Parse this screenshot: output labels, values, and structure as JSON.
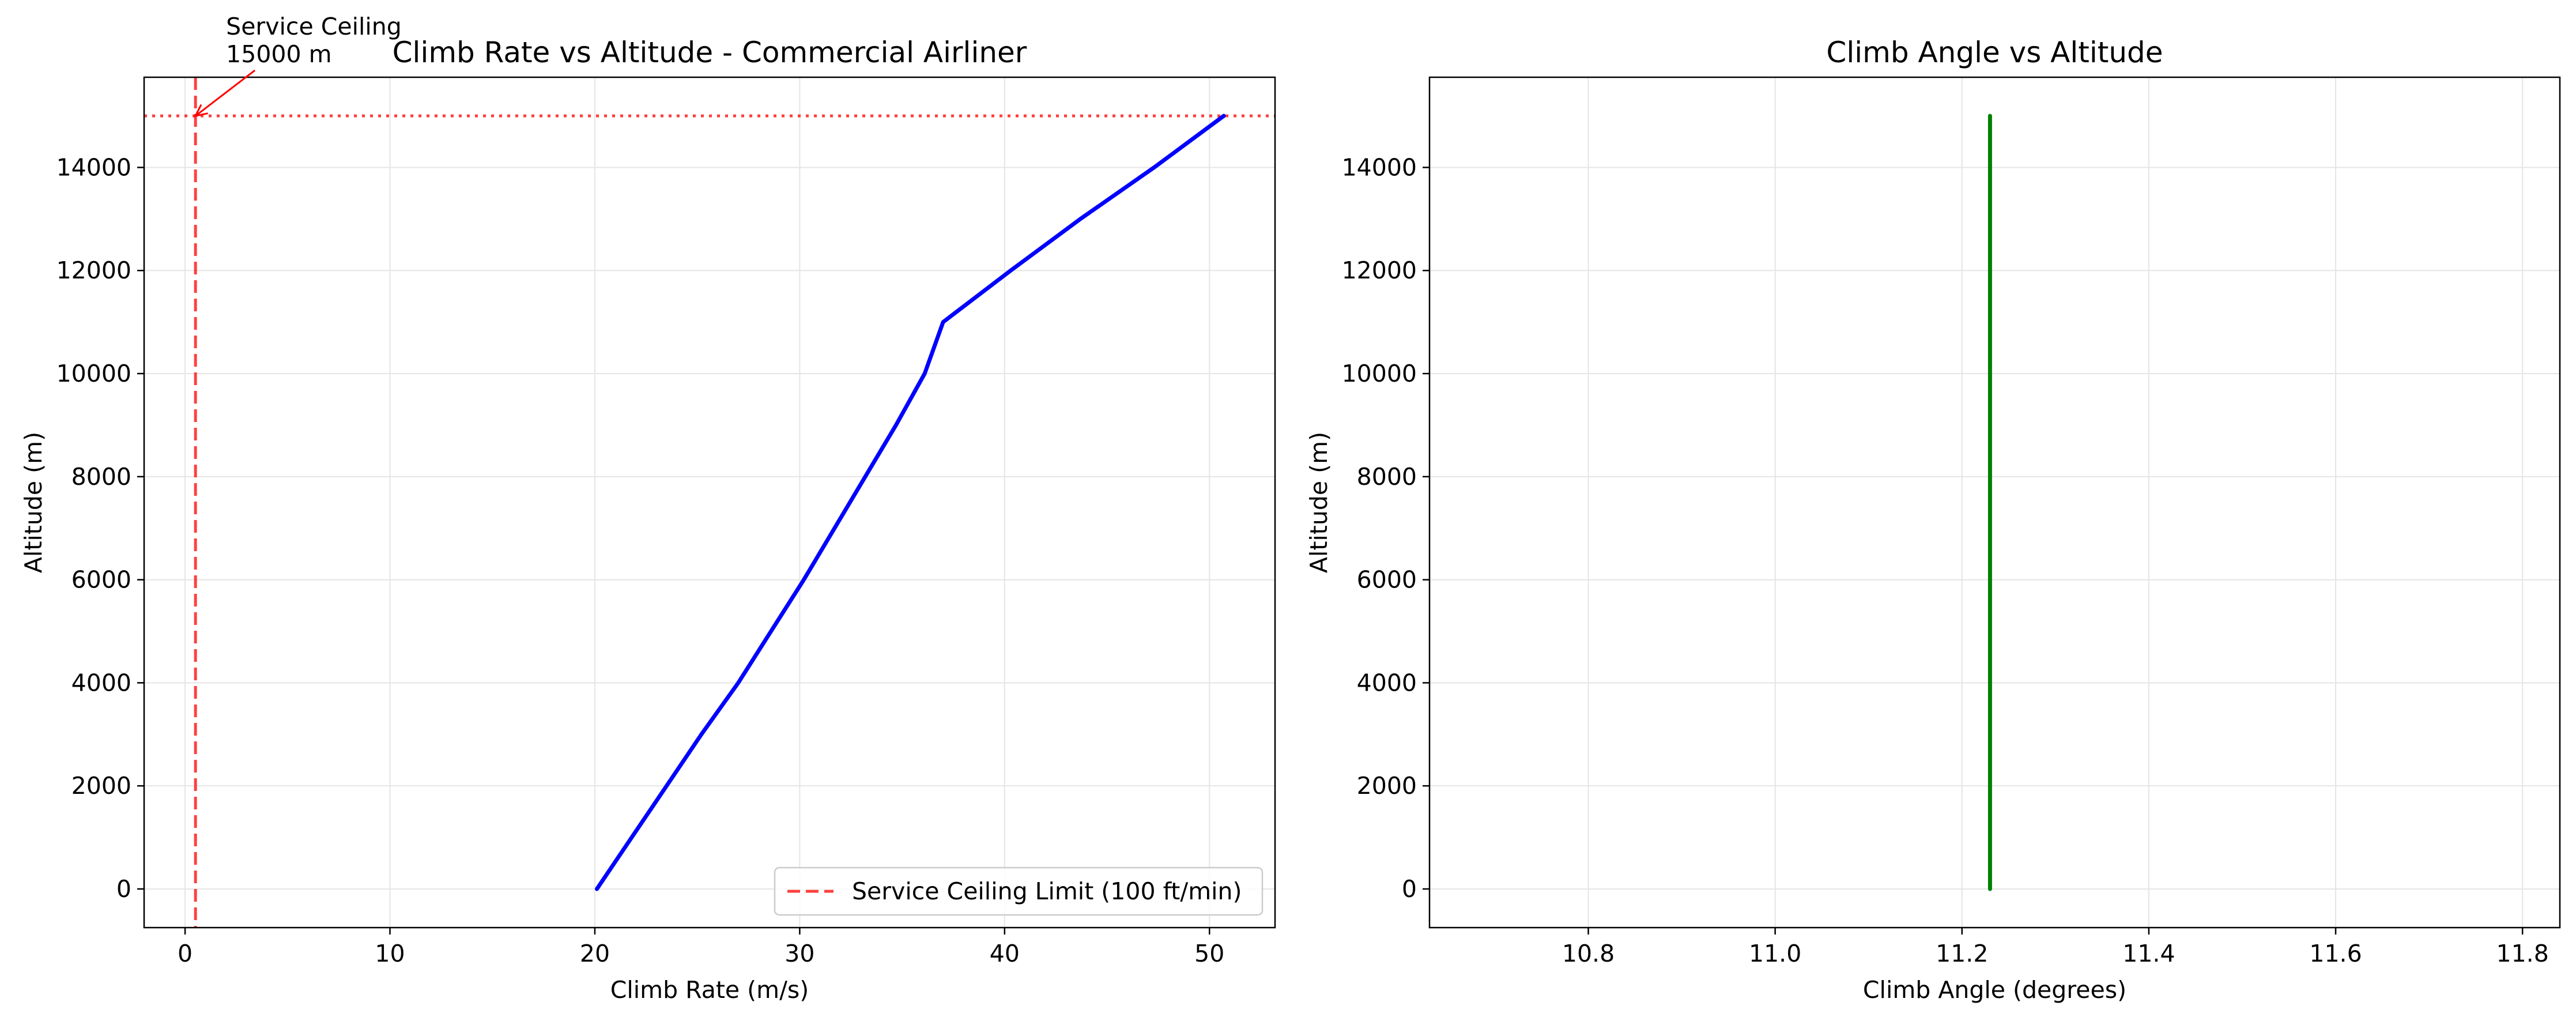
{
  "chart_data": [
    {
      "type": "line",
      "title": "Climb Rate vs Altitude - Commercial Airliner",
      "xlabel": "Climb Rate (m/s)",
      "ylabel": "Altitude (m)",
      "xlim": [
        -2,
        53.2
      ],
      "ylim": [
        -750,
        15750
      ],
      "xticks": [
        0,
        10,
        20,
        30,
        40,
        50
      ],
      "yticks": [
        0,
        2000,
        4000,
        6000,
        8000,
        10000,
        12000,
        14000
      ],
      "grid": true,
      "legend_position": "lower-right",
      "series": [
        {
          "color": "#0000ff",
          "points": [
            [
              20.1,
              0
            ],
            [
              21.8,
              1000
            ],
            [
              23.5,
              2000
            ],
            [
              25.2,
              3000
            ],
            [
              27.0,
              4000
            ],
            [
              28.6,
              5000
            ],
            [
              30.2,
              6000
            ],
            [
              31.7,
              7000
            ],
            [
              33.2,
              8000
            ],
            [
              34.7,
              9000
            ],
            [
              36.1,
              10000
            ],
            [
              37.0,
              11000
            ],
            [
              40.3,
              12000
            ],
            [
              43.7,
              13000
            ],
            [
              47.3,
              14000
            ],
            [
              50.7,
              15000
            ]
          ]
        }
      ],
      "reference_lines": [
        {
          "label": "Service Ceiling Limit (100 ft/min)",
          "orientation": "vertical",
          "value": 0.508,
          "color": "#ff0000",
          "style": "dashed"
        },
        {
          "orientation": "horizontal",
          "value": 15000,
          "color": "#ff0000",
          "style": "dotted"
        }
      ],
      "annotation": {
        "lines": [
          "Service Ceiling",
          "15000 m"
        ],
        "point": [
          0.508,
          15000
        ],
        "text_at": [
          2,
          16500
        ],
        "color": "#ff0000"
      }
    },
    {
      "type": "line",
      "title": "Climb Angle vs Altitude",
      "xlabel": "Climb Angle (degrees)",
      "ylabel": "Altitude (m)",
      "xlim": [
        10.63,
        11.84
      ],
      "ylim": [
        -750,
        15750
      ],
      "xticks": [
        10.8,
        11.0,
        11.2,
        11.4,
        11.6,
        11.8
      ],
      "xtick_labels": [
        "10.8",
        "11.0",
        "11.2",
        "11.4",
        "11.6",
        "11.8"
      ],
      "yticks": [
        0,
        2000,
        4000,
        6000,
        8000,
        10000,
        12000,
        14000
      ],
      "grid": true,
      "series": [
        {
          "color": "#008000",
          "points": [
            [
              11.23,
              0
            ],
            [
              11.23,
              15000
            ]
          ]
        }
      ]
    }
  ]
}
